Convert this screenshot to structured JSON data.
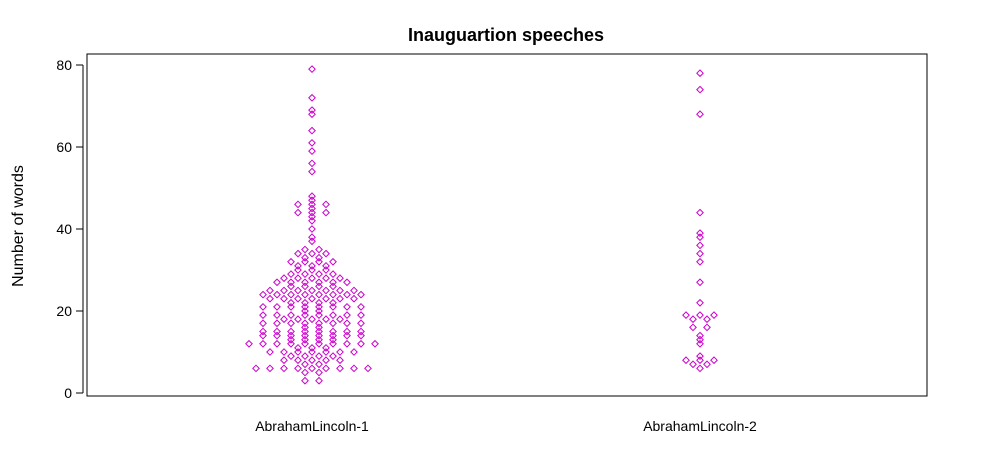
{
  "chart_data": {
    "type": "scatter",
    "title": "Inauguartion speeches",
    "xlabel": "",
    "ylabel": "Number of words",
    "ylim": [
      0,
      83
    ],
    "yticks": [
      0,
      20,
      40,
      60,
      80
    ],
    "grid": false,
    "legend": "none",
    "marker": "diamond",
    "marker_color": "#cc00cc",
    "categories": [
      "AbrahamLincoln-1",
      "AbrahamLincoln-2"
    ],
    "series": [
      {
        "category": "AbrahamLincoln-1",
        "values": [
          3,
          3,
          5,
          5,
          6,
          6,
          6,
          6,
          6,
          6,
          6,
          6,
          6,
          7,
          7,
          8,
          8,
          8,
          8,
          8,
          9,
          9,
          9,
          9,
          10,
          10,
          10,
          10,
          10,
          10,
          10,
          11,
          11,
          11,
          12,
          12,
          12,
          12,
          12,
          12,
          12,
          12,
          12,
          12,
          13,
          13,
          13,
          13,
          14,
          14,
          14,
          14,
          14,
          14,
          14,
          14,
          15,
          15,
          15,
          15,
          15,
          15,
          15,
          15,
          16,
          16,
          17,
          17,
          17,
          17,
          17,
          17,
          17,
          17,
          18,
          18,
          18,
          18,
          18,
          19,
          19,
          19,
          19,
          19,
          19,
          19,
          19,
          20,
          20,
          21,
          21,
          21,
          21,
          21,
          21,
          21,
          21,
          22,
          22,
          22,
          22,
          23,
          23,
          23,
          23,
          23,
          23,
          23,
          24,
          24,
          24,
          24,
          24,
          24,
          24,
          24,
          25,
          25,
          25,
          25,
          25,
          25,
          25,
          26,
          26,
          26,
          26,
          27,
          27,
          27,
          27,
          27,
          27,
          28,
          28,
          28,
          28,
          28,
          29,
          29,
          29,
          29,
          30,
          30,
          30,
          31,
          31,
          31,
          32,
          32,
          32,
          32,
          33,
          33,
          34,
          34,
          34,
          35,
          35,
          37,
          38,
          40,
          42,
          43,
          44,
          44,
          44,
          45,
          46,
          46,
          46,
          47,
          48,
          54,
          56,
          59,
          61,
          64,
          68,
          69,
          72,
          79
        ]
      },
      {
        "category": "AbrahamLincoln-2",
        "values": [
          6,
          7,
          7,
          8,
          8,
          8,
          9,
          12,
          13,
          14,
          16,
          16,
          18,
          18,
          19,
          19,
          19,
          22,
          27,
          32,
          34,
          36,
          38,
          39,
          44,
          68,
          74,
          78
        ]
      }
    ]
  }
}
